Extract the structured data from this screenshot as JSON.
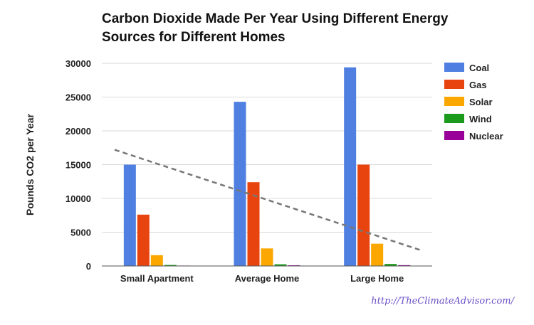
{
  "chart_data": {
    "type": "bar",
    "title": "Carbon Dioxide Made Per Year Using Different Energy Sources for Different Homes",
    "xlabel": "",
    "ylabel": "Pounds CO2 per Year",
    "ylim": [
      0,
      30000
    ],
    "yticks": [
      "0",
      "5000",
      "10000",
      "15000",
      "20000",
      "25000",
      "30000"
    ],
    "grid": true,
    "legend_position": "right",
    "categories": [
      "Small Apartment",
      "Average Home",
      "Large Home"
    ],
    "series": [
      {
        "name": "Coal",
        "color": "#4f7fe0",
        "values": [
          15000,
          24300,
          29400
        ]
      },
      {
        "name": "Gas",
        "color": "#e8440f",
        "values": [
          7600,
          12400,
          15000
        ]
      },
      {
        "name": "Solar",
        "color": "#fba700",
        "values": [
          1600,
          2600,
          3300
        ]
      },
      {
        "name": "Wind",
        "color": "#1c9a1c",
        "values": [
          150,
          250,
          300
        ]
      },
      {
        "name": "Nuclear",
        "color": "#990099",
        "values": [
          60,
          100,
          120
        ]
      }
    ],
    "trendline": {
      "style": "dashed",
      "color": "#777777",
      "start_value": 17200,
      "end_value": 2300
    }
  },
  "watermark": "http://TheClimateAdvisor.com/"
}
